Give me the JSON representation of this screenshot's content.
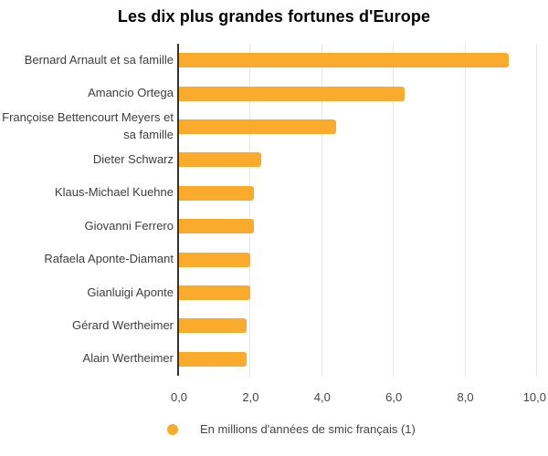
{
  "page": {
    "background": "#ffffff"
  },
  "colors": {
    "bar": "#FAAB2B",
    "axis_line": "#333333",
    "gridline": "#e6e6e6",
    "category_text": "#3d3d3d",
    "tick_text": "#444444",
    "title_text": "#000000"
  },
  "legend": {
    "marker": "circle",
    "label": "En millions d'années de smic français (1)"
  },
  "chart_data": {
    "type": "bar",
    "orientation": "horizontal",
    "title": "Les dix plus grandes fortunes d'Europe",
    "xlabel": "",
    "ylabel": "",
    "categories": [
      "Bernard Arnault et sa famille",
      "Amancio Ortega",
      "Françoise Bettencourt Meyers et sa famille",
      "Dieter Schwarz",
      "Klaus-Michael Kuehne",
      "Giovanni Ferrero",
      "Rafaela Aponte-Diamant",
      "Gianluigi Aponte",
      "Gérard Wertheimer",
      "Alain Wertheimer"
    ],
    "values": [
      9.2,
      6.3,
      4.4,
      2.3,
      2.1,
      2.1,
      2.0,
      2.0,
      1.9,
      1.9
    ],
    "series_name": "En millions d'années de smic français (1)",
    "xlim": [
      0,
      10
    ],
    "x_ticks": [
      {
        "value": 0,
        "label": "0,0"
      },
      {
        "value": 2,
        "label": "2,0"
      },
      {
        "value": 4,
        "label": "4,0"
      },
      {
        "value": 6,
        "label": "6,0"
      },
      {
        "value": 8,
        "label": "8,0"
      },
      {
        "value": 10,
        "label": "10,0"
      }
    ],
    "grid": true,
    "legend_position": "bottom"
  }
}
